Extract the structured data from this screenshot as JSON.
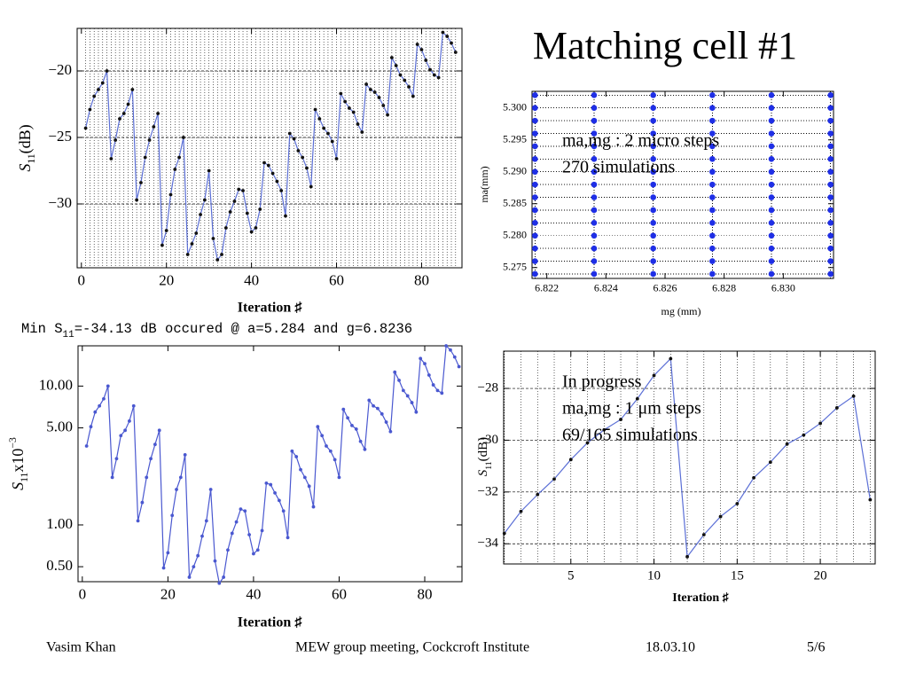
{
  "title": "Matching cell #1",
  "note": [
    "Min S",
    "11",
    "=-34.13 dB occured @ a=5.284 and g=6.8236"
  ],
  "footer": {
    "author": "Vasim Khan",
    "event": "MEW group meeting, Cockcroft Institute",
    "date": "18.03.10",
    "page": "5/6"
  },
  "chart_data": [
    {
      "type": "line",
      "x_label": "Iteration ♯",
      "y_label": [
        "S",
        "11",
        "(dB)"
      ],
      "grid": true,
      "color": "#5b6fd6",
      "point_color": "#111111",
      "xlim": [
        -1,
        89.5
      ],
      "ylim": [
        -34.8,
        -16.8
      ],
      "xticks": [
        0,
        20,
        40,
        60,
        80
      ],
      "yticks": [
        {
          "value": -20,
          "label": "−20"
        },
        {
          "value": -25,
          "label": "−25"
        },
        {
          "value": -30,
          "label": "−30"
        }
      ],
      "x": [
        1,
        2,
        3,
        4,
        5,
        6,
        7,
        8,
        9,
        10,
        11,
        12,
        13,
        14,
        15,
        16,
        17,
        18,
        19,
        20,
        21,
        22,
        23,
        24,
        25,
        26,
        27,
        28,
        29,
        30,
        31,
        32,
        33,
        34,
        35,
        36,
        37,
        38,
        39,
        40,
        41,
        42,
        43,
        44,
        45,
        46,
        47,
        48,
        49,
        50,
        51,
        52,
        53,
        54,
        55,
        56,
        57,
        58,
        59,
        60,
        61,
        62,
        63,
        64,
        65,
        66,
        67,
        68,
        69,
        70,
        71,
        72,
        73,
        74,
        75,
        76,
        77,
        78,
        79,
        80,
        81,
        82,
        83,
        84,
        85,
        86,
        87,
        88
      ],
      "values": [
        -24.3,
        -22.9,
        -21.9,
        -21.4,
        -20.9,
        -20.0,
        -26.6,
        -25.2,
        -23.6,
        -23.2,
        -22.5,
        -21.4,
        -29.7,
        -28.4,
        -26.5,
        -25.2,
        -24.2,
        -23.2,
        -33.1,
        -32.0,
        -29.3,
        -27.4,
        -26.5,
        -25.0,
        -33.8,
        -33.0,
        -32.2,
        -30.8,
        -29.7,
        -27.5,
        -32.6,
        -34.2,
        -33.8,
        -31.8,
        -30.6,
        -29.8,
        -28.9,
        -29.0,
        -30.7,
        -32.1,
        -31.8,
        -30.4,
        -26.9,
        -27.1,
        -27.7,
        -28.3,
        -29.0,
        -30.9,
        -24.7,
        -25.1,
        -26.0,
        -26.5,
        -27.3,
        -28.7,
        -22.9,
        -23.6,
        -24.3,
        -24.7,
        -25.3,
        -26.6,
        -21.7,
        -22.3,
        -22.8,
        -23.1,
        -24.0,
        -24.6,
        -21.0,
        -21.4,
        -21.6,
        -22.0,
        -22.6,
        -23.3,
        -19.0,
        -19.6,
        -20.3,
        -20.7,
        -21.2,
        -21.9,
        -18.0,
        -18.4,
        -19.2,
        -19.9,
        -20.3,
        -20.5,
        -17.1,
        -17.4,
        -17.9,
        -18.6
      ]
    },
    {
      "type": "scatter",
      "x_label": "mg (mm)",
      "y_label": "ma(mm)",
      "grid": true,
      "color": "#1f2fe6",
      "annotations": [
        "ma,mg : 2 micro steps",
        "270 simulations"
      ],
      "xlim": [
        6.8215,
        6.8317
      ],
      "ylim": [
        5.2733,
        5.3026
      ],
      "xticks": [
        6.822,
        6.824,
        6.826,
        6.828,
        {
          "value": 6.83,
          "label": "6.830"
        }
      ],
      "yticks": [
        5.275,
        {
          "value": 5.28,
          "label": "5.280"
        },
        5.285,
        {
          "value": 5.29,
          "label": "5.290"
        },
        5.295,
        {
          "value": 5.3,
          "label": "5.300"
        }
      ],
      "x": [
        6.8216,
        6.8216,
        6.8216,
        6.8216,
        6.8216,
        6.8216,
        6.8216,
        6.8216,
        6.8216,
        6.8216,
        6.8216,
        6.8216,
        6.8216,
        6.8216,
        6.8216,
        6.8236,
        6.8236,
        6.8236,
        6.8236,
        6.8236,
        6.8236,
        6.8236,
        6.8236,
        6.8236,
        6.8236,
        6.8236,
        6.8236,
        6.8236,
        6.8236,
        6.8236,
        6.8256,
        6.8256,
        6.8256,
        6.8256,
        6.8256,
        6.8256,
        6.8256,
        6.8256,
        6.8256,
        6.8256,
        6.8256,
        6.8256,
        6.8256,
        6.8256,
        6.8256,
        6.8276,
        6.8276,
        6.8276,
        6.8276,
        6.8276,
        6.8276,
        6.8276,
        6.8276,
        6.8276,
        6.8276,
        6.8276,
        6.8276,
        6.8276,
        6.8276,
        6.8276,
        6.8296,
        6.8296,
        6.8296,
        6.8296,
        6.8296,
        6.8296,
        6.8296,
        6.8296,
        6.8296,
        6.8296,
        6.8296,
        6.8296,
        6.8296,
        6.8296,
        6.8296,
        6.8316,
        6.8316,
        6.8316,
        6.8316,
        6.8316,
        6.8316,
        6.8316,
        6.8316,
        6.8316,
        6.8316,
        6.8316,
        6.8316,
        6.8316,
        6.8316,
        6.8316
      ],
      "values": [
        5.274,
        5.276,
        5.278,
        5.28,
        5.282,
        5.284,
        5.286,
        5.288,
        5.29,
        5.292,
        5.294,
        5.296,
        5.298,
        5.3,
        5.302,
        5.274,
        5.276,
        5.278,
        5.28,
        5.282,
        5.284,
        5.286,
        5.288,
        5.29,
        5.292,
        5.294,
        5.296,
        5.298,
        5.3,
        5.302,
        5.274,
        5.276,
        5.278,
        5.28,
        5.282,
        5.284,
        5.286,
        5.288,
        5.29,
        5.292,
        5.294,
        5.296,
        5.298,
        5.3,
        5.302,
        5.274,
        5.276,
        5.278,
        5.28,
        5.282,
        5.284,
        5.286,
        5.288,
        5.29,
        5.292,
        5.294,
        5.296,
        5.298,
        5.3,
        5.302,
        5.274,
        5.276,
        5.278,
        5.28,
        5.282,
        5.284,
        5.286,
        5.288,
        5.29,
        5.292,
        5.294,
        5.296,
        5.298,
        5.3,
        5.302,
        5.274,
        5.276,
        5.278,
        5.28,
        5.282,
        5.284,
        5.286,
        5.288,
        5.29,
        5.292,
        5.294,
        5.296,
        5.298,
        5.3,
        5.302
      ]
    },
    {
      "type": "line",
      "x_label": "Iteration ♯",
      "y_label": [
        "S",
        "11",
        "x10",
        "−3"
      ],
      "grid": false,
      "log_y": true,
      "color": "#4a58d0",
      "point_color": "#4a58d0",
      "xlim": [
        -1,
        88.7
      ],
      "ylim": [
        0.39,
        19.5
      ],
      "xticks": [
        0,
        20,
        40,
        60,
        80
      ],
      "yticks": [
        {
          "value": 0.5,
          "label": "0.50"
        },
        {
          "value": 1,
          "label": "1.00"
        },
        {
          "value": 5,
          "label": "5.00"
        },
        {
          "value": 10,
          "label": "10.00"
        }
      ],
      "x": [
        1,
        2,
        3,
        4,
        5,
        6,
        7,
        8,
        9,
        10,
        11,
        12,
        13,
        14,
        15,
        16,
        17,
        18,
        19,
        20,
        21,
        22,
        23,
        24,
        25,
        26,
        27,
        28,
        29,
        30,
        31,
        32,
        33,
        34,
        35,
        36,
        37,
        38,
        39,
        40,
        41,
        42,
        43,
        44,
        45,
        46,
        47,
        48,
        49,
        50,
        51,
        52,
        53,
        54,
        55,
        56,
        57,
        58,
        59,
        60,
        61,
        62,
        63,
        64,
        65,
        66,
        67,
        68,
        69,
        70,
        71,
        72,
        73,
        74,
        75,
        76,
        77,
        78,
        79,
        80,
        81,
        82,
        83,
        84,
        85,
        86,
        87,
        88
      ],
      "values": [
        3.7,
        5.1,
        6.5,
        7.2,
        8.1,
        10,
        2.2,
        3.0,
        4.4,
        4.8,
        5.6,
        7.2,
        1.07,
        1.45,
        2.2,
        3.0,
        3.8,
        4.8,
        0.49,
        0.63,
        1.17,
        1.8,
        2.2,
        3.2,
        0.42,
        0.5,
        0.6,
        0.83,
        1.07,
        1.8,
        0.55,
        0.38,
        0.42,
        0.66,
        0.87,
        1.05,
        1.3,
        1.26,
        0.85,
        0.62,
        0.66,
        0.91,
        2.0,
        1.95,
        1.7,
        1.5,
        1.26,
        0.81,
        3.4,
        3.1,
        2.5,
        2.2,
        1.9,
        1.35,
        5.1,
        4.4,
        3.7,
        3.4,
        2.95,
        2.2,
        6.8,
        5.9,
        5.2,
        4.9,
        4.0,
        3.5,
        7.9,
        7.2,
        6.9,
        6.3,
        5.5,
        4.7,
        12.6,
        11.0,
        9.3,
        8.5,
        7.6,
        6.5,
        15.8,
        14.5,
        12.0,
        10.2,
        9.3,
        8.9,
        19.5,
        18.2,
        16.2,
        13.8
      ]
    },
    {
      "type": "line",
      "x_label": "Iteration ♯",
      "y_label": [
        "S",
        "11",
        "(dB)"
      ],
      "grid": true,
      "color": "#5b6fd6",
      "point_color": "#111111",
      "annotations": [
        "In progress",
        "ma,mg : 1 μm steps",
        "69/165 simulations"
      ],
      "xlim": [
        0.96,
        23.3
      ],
      "ylim": [
        -34.78,
        -26.56
      ],
      "xticks": [
        5,
        10,
        15,
        20
      ],
      "yticks": [
        {
          "value": -28,
          "label": "−28"
        },
        {
          "value": -30,
          "label": "−30"
        },
        {
          "value": -32,
          "label": "−32"
        },
        {
          "value": -34,
          "label": "−34"
        }
      ],
      "x": [
        1,
        2,
        3,
        4,
        5,
        6,
        7,
        8,
        9,
        10,
        11,
        12,
        13,
        14,
        15,
        16,
        17,
        18,
        19,
        20,
        21,
        22,
        23
      ],
      "values": [
        -33.6,
        -32.75,
        -32.1,
        -31.5,
        -30.75,
        -30.1,
        -29.6,
        -29.2,
        -28.4,
        -27.5,
        -26.85,
        -34.5,
        -33.65,
        -32.95,
        -32.45,
        -31.45,
        -30.85,
        -30.15,
        -29.8,
        -29.35,
        -28.75,
        -28.3,
        -32.3
      ]
    }
  ]
}
